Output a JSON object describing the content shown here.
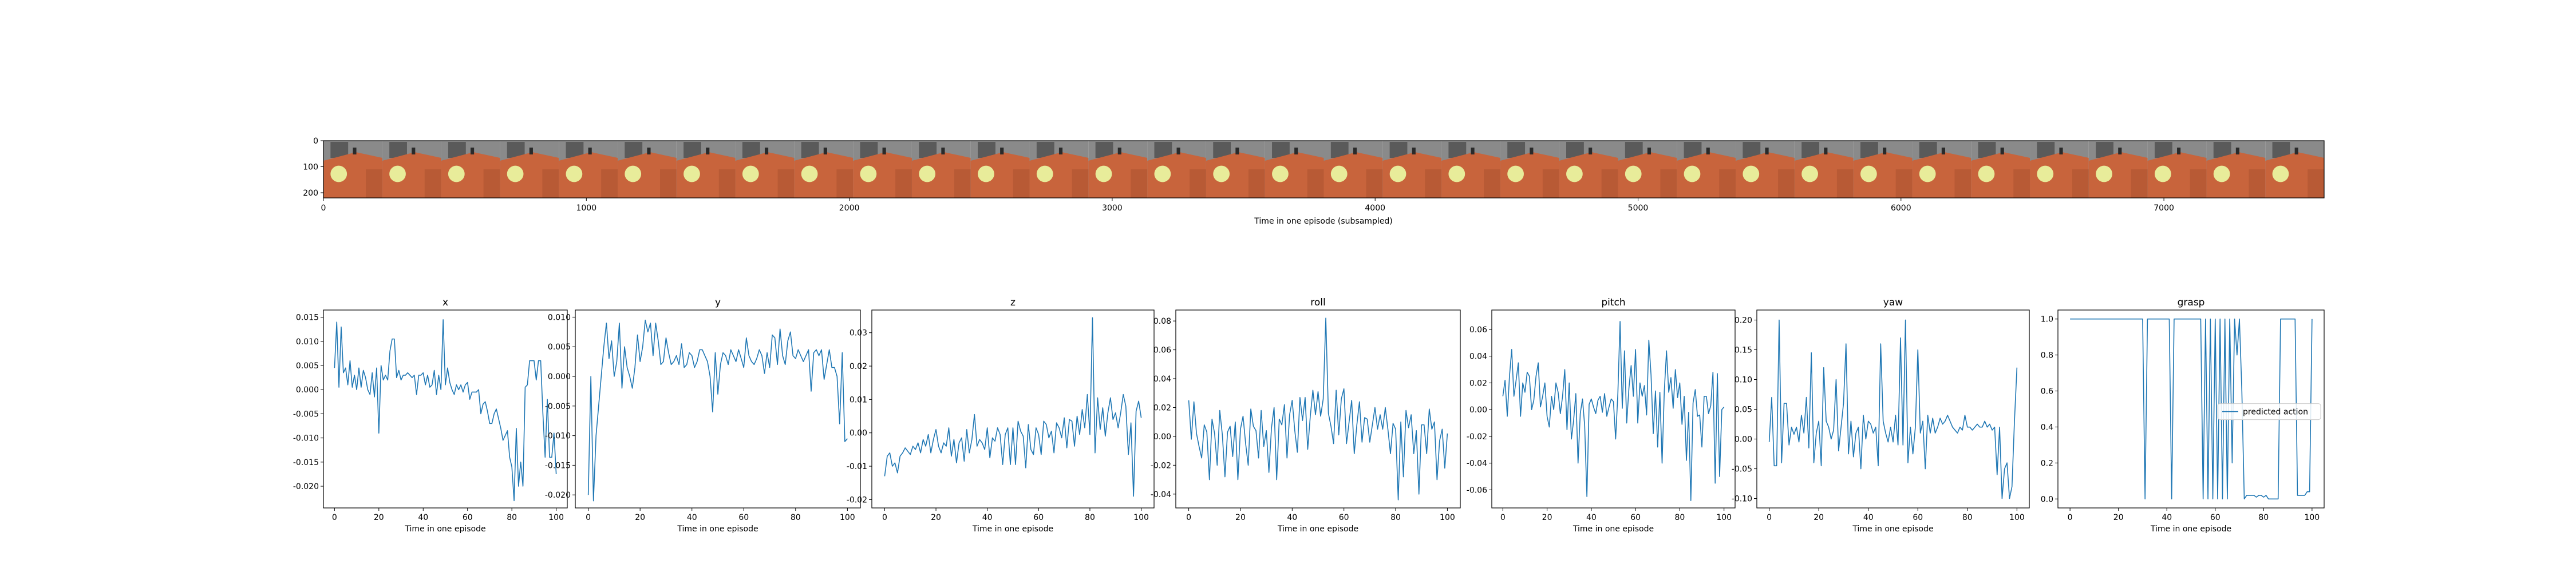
{
  "strip": {
    "xlabel": "Time in one episode (subsampled)",
    "yticks": [
      "0",
      "100",
      "200"
    ],
    "xticks": [
      "0",
      "1000",
      "2000",
      "3000",
      "4000",
      "5000",
      "6000",
      "7000"
    ],
    "frame_count": 34,
    "colors": {
      "background": "#8a8a8a",
      "table": "#c8643c",
      "light": "#e8ec9a"
    }
  },
  "chart_data": [
    {
      "type": "line",
      "title": "x",
      "xlabel": "Time in one episode",
      "xlim": [
        -5,
        105
      ],
      "ylim": [
        -0.0245,
        0.0165
      ],
      "xticks": [
        "0",
        "20",
        "40",
        "60",
        "80",
        "100"
      ],
      "xtick_values": [
        0,
        20,
        40,
        60,
        80,
        100
      ],
      "yticks": [
        "0.015",
        "0.010",
        "0.005",
        "0.000",
        "-0.005",
        "-0.010",
        "-0.015",
        "-0.020"
      ],
      "ytick_values": [
        0.015,
        0.01,
        0.005,
        0.0,
        -0.005,
        -0.01,
        -0.015,
        -0.02
      ],
      "color": "#1f77b4",
      "series": [
        {
          "values": [
            0.0045,
            0.014,
            0.0005,
            0.013,
            0.0035,
            0.0045,
            0.001,
            0.006,
            0.0005,
            0.003,
            0.0,
            0.0045,
            0.0005,
            0.004,
            0.0025,
            0.0,
            -0.001,
            0.0035,
            -0.0015,
            0.0045,
            -0.009,
            0.005,
            0.002,
            0.003,
            0.002,
            0.008,
            0.0105,
            0.0105,
            0.0025,
            0.004,
            0.002,
            0.003,
            0.003,
            0.0035,
            0.003,
            0.0025,
            0.003,
            -0.001,
            0.003,
            0.003,
            0.0035,
            0.001,
            0.003,
            0.0005,
            0.001,
            0.004,
            -0.001,
            0.003,
            0.0,
            0.0145,
            0.001,
            0.0045,
            0.0015,
            0.0,
            -0.001,
            0.001,
            0.0,
            0.001,
            -0.0005,
            0.001,
            0.0015,
            -0.002,
            -0.0005,
            -0.0005,
            -0.0005,
            0.0,
            -0.005,
            -0.003,
            -0.0025,
            -0.0045,
            -0.007,
            -0.007,
            -0.005,
            -0.004,
            -0.006,
            -0.008,
            -0.0105,
            -0.0095,
            -0.0085,
            -0.014,
            -0.016,
            -0.023,
            -0.008,
            -0.02,
            -0.015,
            -0.02,
            0.0005,
            0.001,
            0.006,
            0.006,
            0.006,
            0.002,
            0.006,
            0.006,
            -0.005,
            -0.014,
            -0.002,
            -0.014,
            -0.014,
            -0.009,
            -0.0175
          ]
        }
      ]
    },
    {
      "type": "line",
      "title": "y",
      "xlabel": "Time in one episode",
      "xlim": [
        -5,
        105
      ],
      "ylim": [
        -0.0222,
        0.0112
      ],
      "xticks": [
        "0",
        "20",
        "40",
        "60",
        "80",
        "100"
      ],
      "xtick_values": [
        0,
        20,
        40,
        60,
        80,
        100
      ],
      "yticks": [
        "0.010",
        "0.005",
        "0.000",
        "-0.005",
        "-0.010",
        "-0.015",
        "-0.020"
      ],
      "ytick_values": [
        0.01,
        0.005,
        0.0,
        -0.005,
        -0.01,
        -0.015,
        -0.02
      ],
      "color": "#1f77b4",
      "series": [
        {
          "values": [
            -0.02,
            0.0,
            -0.021,
            -0.01,
            -0.005,
            0.0,
            0.005,
            0.009,
            0.003,
            0.006,
            0.0,
            0.0025,
            0.009,
            -0.002,
            0.005,
            0.0015,
            0.0,
            -0.002,
            0.0015,
            0.007,
            0.0025,
            0.005,
            0.0095,
            0.0075,
            0.009,
            0.0035,
            0.009,
            0.006,
            0.002,
            0.0025,
            0.0065,
            0.004,
            0.002,
            0.0025,
            0.0035,
            0.002,
            0.0055,
            0.0015,
            0.002,
            0.004,
            0.0035,
            0.0015,
            0.0025,
            0.0045,
            0.0045,
            0.0035,
            0.0025,
            0.0,
            -0.006,
            0.004,
            -0.003,
            0.002,
            0.004,
            0.0035,
            0.002,
            0.0045,
            0.0035,
            0.0025,
            0.0045,
            0.003,
            0.0015,
            0.0065,
            0.0035,
            0.0025,
            0.002,
            0.003,
            0.0045,
            0.0035,
            0.0005,
            0.004,
            0.0015,
            0.007,
            0.0065,
            0.002,
            0.008,
            0.0035,
            0.002,
            0.006,
            0.0075,
            0.0035,
            0.003,
            0.0045,
            0.0035,
            0.0025,
            0.0035,
            0.0045,
            -0.0025,
            0.004,
            0.0045,
            0.0035,
            0.0045,
            -0.0005,
            0.002,
            0.0045,
            0.0015,
            0.0015,
            0.0,
            -0.008,
            0.004,
            -0.011,
            -0.0105
          ]
        }
      ]
    },
    {
      "type": "line",
      "title": "z",
      "xlabel": "Time in one episode",
      "xlim": [
        -5,
        105
      ],
      "ylim": [
        -0.0225,
        0.0368
      ],
      "xticks": [
        "0",
        "20",
        "40",
        "60",
        "80",
        "100"
      ],
      "xtick_values": [
        0,
        20,
        40,
        60,
        80,
        100
      ],
      "yticks": [
        "0.03",
        "0.02",
        "0.01",
        "0.00",
        "-0.01",
        "-0.02"
      ],
      "ytick_values": [
        0.03,
        0.02,
        0.01,
        0.0,
        -0.01,
        -0.02
      ],
      "color": "#1f77b4",
      "series": [
        {
          "values": [
            -0.013,
            -0.007,
            -0.006,
            -0.01,
            -0.009,
            -0.012,
            -0.007,
            -0.006,
            -0.0045,
            -0.0055,
            -0.0065,
            -0.004,
            -0.005,
            -0.003,
            -0.006,
            -0.002,
            -0.004,
            -0.0005,
            -0.006,
            -0.002,
            0.001,
            -0.004,
            -0.006,
            -0.003,
            -0.004,
            0.0015,
            -0.007,
            -0.002,
            -0.009,
            -0.003,
            -0.0015,
            -0.0085,
            0.001,
            -0.006,
            -0.002,
            0.0055,
            -0.004,
            -0.002,
            -0.003,
            -0.005,
            0.0015,
            -0.0075,
            -0.0015,
            -0.0025,
            0.0015,
            -0.0005,
            -0.0095,
            -0.0005,
            0.0015,
            -0.0095,
            0.0015,
            -0.0095,
            0.0035,
            0.0005,
            -0.001,
            -0.0105,
            0.0025,
            -0.005,
            -0.0065,
            0.0015,
            -0.0005,
            -0.0065,
            0.0035,
            0.0025,
            -0.0015,
            0.0005,
            -0.006,
            0.003,
            0.0015,
            -0.0015,
            0.0045,
            -0.0045,
            0.004,
            0.0035,
            -0.004,
            0.005,
            -0.0005,
            0.007,
            0.0015,
            0.0115,
            -0.0005,
            0.0345,
            -0.006,
            0.0105,
            0.001,
            0.0075,
            -0.001,
            0.006,
            0.0105,
            0.004,
            0.006,
            0.0015,
            0.006,
            0.0115,
            0.008,
            -0.0065,
            0.003,
            -0.019,
            0.0065,
            0.0095,
            0.0045
          ]
        }
      ]
    },
    {
      "type": "line",
      "title": "roll",
      "xlabel": "Time in one episode",
      "xlim": [
        -5,
        105
      ],
      "ylim": [
        -0.0496,
        0.0876
      ],
      "xticks": [
        "0",
        "20",
        "40",
        "60",
        "80",
        "100"
      ],
      "xtick_values": [
        0,
        20,
        40,
        60,
        80,
        100
      ],
      "yticks": [
        "0.08",
        "0.06",
        "0.04",
        "0.02",
        "0.00",
        "-0.02",
        "-0.04"
      ],
      "ytick_values": [
        0.08,
        0.06,
        0.04,
        0.02,
        0.0,
        -0.02,
        -0.04
      ],
      "color": "#1f77b4",
      "series": [
        {
          "values": [
            0.025,
            -0.002,
            0.024,
            0.002,
            -0.007,
            -0.015,
            0.008,
            0.003,
            -0.03,
            0.012,
            0.002,
            -0.02,
            0.018,
            0.001,
            -0.028,
            0.003,
            0.007,
            -0.014,
            0.01,
            -0.03,
            0.005,
            0.014,
            -0.005,
            -0.02,
            0.019,
            0.007,
            0.004,
            -0.015,
            0.018,
            -0.007,
            0.004,
            -0.025,
            0.006,
            0.02,
            -0.03,
            0.012,
            0.008,
            0.022,
            -0.015,
            0.015,
            0.025,
            0.004,
            -0.011,
            0.027,
            0.011,
            0.027,
            -0.009,
            0.014,
            0.032,
            0.015,
            0.031,
            0.014,
            0.026,
            0.082,
            0.016,
            0.007,
            -0.005,
            0.032,
            0.001,
            0.026,
            0.033,
            -0.005,
            0.01,
            0.025,
            -0.012,
            0.008,
            0.024,
            -0.004,
            0.013,
            0.012,
            -0.004,
            0.008,
            0.02,
            0.005,
            0.015,
            0.005,
            0.02,
            0.005,
            -0.012,
            0.009,
            0.005,
            -0.044,
            0.01,
            -0.028,
            0.018,
            0.006,
            0.015,
            -0.012,
            0.004,
            -0.04,
            0.008,
            0.008,
            -0.012,
            0.019,
            0.005,
            0.01,
            -0.03,
            -0.003,
            0.005,
            -0.022,
            0.002
          ]
        }
      ]
    },
    {
      "type": "line",
      "title": "pitch",
      "xlabel": "Time in one episode",
      "xlim": [
        -5,
        105
      ],
      "ylim": [
        -0.0735,
        0.0745
      ],
      "xticks": [
        "0",
        "20",
        "40",
        "60",
        "80",
        "100"
      ],
      "xtick_values": [
        0,
        20,
        40,
        60,
        80,
        100
      ],
      "yticks": [
        "0.06",
        "0.04",
        "0.02",
        "0.00",
        "-0.02",
        "-0.04",
        "-0.06"
      ],
      "ytick_values": [
        0.06,
        0.04,
        0.02,
        0.0,
        -0.02,
        -0.04,
        -0.06
      ],
      "color": "#1f77b4",
      "series": [
        {
          "values": [
            0.01,
            0.022,
            -0.005,
            0.025,
            0.045,
            0.01,
            0.022,
            0.035,
            -0.005,
            0.02,
            0.013,
            0.028,
            0.025,
            0.0,
            0.007,
            0.025,
            0.035,
            0.002,
            0.01,
            0.02,
            -0.005,
            -0.013,
            0.01,
            0.0,
            0.02,
            0.013,
            -0.003,
            0.01,
            0.03,
            -0.015,
            0.02,
            -0.022,
            -0.008,
            0.012,
            -0.04,
            -0.003,
            0.008,
            -0.012,
            -0.065,
            0.004,
            0.008,
            0.002,
            -0.003,
            0.007,
            0.01,
            -0.002,
            0.012,
            -0.005,
            0.002,
            0.008,
            0.006,
            -0.022,
            0.012,
            0.066,
            0.001,
            0.044,
            -0.01,
            0.016,
            0.033,
            0.01,
            0.045,
            -0.01,
            0.02,
            0.01,
            0.018,
            -0.004,
            0.052,
            0.026,
            -0.018,
            0.014,
            -0.028,
            0.013,
            -0.04,
            0.014,
            0.044,
            0.013,
            0.024,
            0.001,
            0.03,
            0.009,
            0.02,
            -0.011,
            0.01,
            -0.038,
            -0.002,
            -0.068,
            0.005,
            0.015,
            -0.005,
            -0.004,
            -0.028,
            0.01,
            0.01,
            -0.003,
            0.003,
            0.028,
            -0.055,
            0.027,
            -0.05,
            0.0,
            0.002
          ]
        }
      ]
    },
    {
      "type": "line",
      "title": "yaw",
      "xlabel": "Time in one episode",
      "xlim": [
        -5,
        105
      ],
      "ylim": [
        -0.1158,
        0.2168
      ],
      "xticks": [
        "0",
        "20",
        "40",
        "60",
        "80",
        "100"
      ],
      "xtick_values": [
        0,
        20,
        40,
        60,
        80,
        100
      ],
      "yticks": [
        "0.20",
        "0.15",
        "0.10",
        "0.05",
        "0.00",
        "-0.05",
        "-0.10"
      ],
      "ytick_values": [
        0.2,
        0.15,
        0.1,
        0.05,
        0.0,
        -0.05,
        -0.1
      ],
      "color": "#1f77b4",
      "series": [
        {
          "values": [
            -0.005,
            0.07,
            -0.045,
            -0.045,
            0.2,
            -0.04,
            0.06,
            0.06,
            -0.01,
            0.02,
            0.008,
            0.02,
            -0.005,
            0.04,
            0.01,
            0.07,
            -0.015,
            0.145,
            -0.04,
            0.01,
            0.03,
            -0.045,
            0.12,
            0.03,
            0.02,
            0.0,
            0.015,
            0.1,
            -0.02,
            0.02,
            0.06,
            0.16,
            -0.025,
            0.03,
            -0.03,
            0.01,
            0.02,
            -0.05,
            0.04,
            0.0,
            0.03,
            0.025,
            0.01,
            0.02,
            -0.045,
            0.16,
            0.03,
            0.01,
            -0.005,
            0.02,
            -0.005,
            0.04,
            -0.01,
            0.17,
            -0.01,
            0.2,
            -0.04,
            0.02,
            -0.025,
            0.02,
            0.15,
            0.01,
            0.03,
            -0.05,
            0.04,
            0.01,
            0.035,
            0.01,
            0.02,
            0.035,
            0.025,
            0.03,
            0.04,
            0.03,
            0.02,
            0.015,
            0.01,
            0.02,
            0.015,
            0.04,
            0.02,
            0.02,
            0.015,
            0.02,
            0.025,
            0.02,
            0.02,
            0.03,
            0.02,
            0.025,
            0.015,
            0.02,
            -0.06,
            0.02,
            -0.1,
            -0.05,
            -0.04,
            -0.1,
            -0.08,
            0.03,
            0.12
          ]
        }
      ]
    },
    {
      "type": "line",
      "title": "grasp",
      "xlabel": "Time in one episode",
      "xlim": [
        -5,
        105
      ],
      "ylim": [
        -0.05,
        1.05
      ],
      "xticks": [
        "0",
        "20",
        "40",
        "60",
        "80",
        "100"
      ],
      "xtick_values": [
        0,
        20,
        40,
        60,
        80,
        100
      ],
      "yticks": [
        "1.0",
        "0.8",
        "0.6",
        "0.4",
        "0.2",
        "0.0"
      ],
      "ytick_values": [
        1.0,
        0.8,
        0.6,
        0.4,
        0.2,
        0.0
      ],
      "color": "#1f77b4",
      "legend": "predicted action",
      "legend_position": "center-right",
      "series": [
        {
          "name": "predicted action",
          "values": [
            1,
            1,
            1,
            1,
            1,
            1,
            1,
            1,
            1,
            1,
            1,
            1,
            1,
            1,
            1,
            1,
            1,
            1,
            1,
            1,
            1,
            1,
            1,
            1,
            1,
            1,
            1,
            1,
            1,
            1,
            1,
            0,
            1,
            1,
            1,
            1,
            1,
            1,
            1,
            1,
            1,
            1,
            0,
            1,
            1,
            1,
            1,
            1,
            1,
            1,
            1,
            1,
            1,
            1,
            1,
            0,
            1,
            0,
            1,
            0,
            1,
            0,
            1,
            0,
            1,
            0,
            1,
            0.2,
            1,
            0.8,
            1,
            0.6,
            0,
            0.02,
            0.02,
            0.02,
            0.02,
            0.01,
            0.02,
            0.02,
            0.01,
            0.02,
            0,
            0,
            0,
            0,
            0,
            1,
            1,
            1,
            1,
            1,
            1,
            1,
            0.02,
            0.02,
            0.02,
            0.02,
            0.04,
            0.04,
            1
          ]
        }
      ]
    }
  ]
}
